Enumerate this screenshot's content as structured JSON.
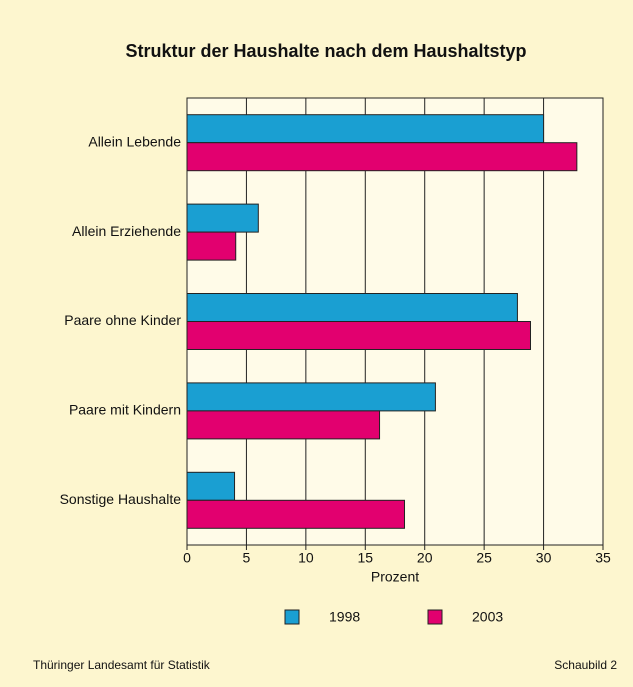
{
  "chart_data": {
    "type": "barh",
    "title": "Struktur der Haushalte nach dem Haushaltstyp",
    "categories": [
      "Allein Lebende",
      "Allein Erziehende",
      "Paare ohne Kinder",
      "Paare mit Kindern",
      "Sonstige Haushalte"
    ],
    "series": [
      {
        "name": "1998",
        "color": "#1a9fd2",
        "values": [
          30.0,
          6.0,
          27.8,
          20.9,
          4.0
        ]
      },
      {
        "name": "2003",
        "color": "#e2006f",
        "values": [
          32.8,
          4.1,
          28.9,
          16.2,
          18.3
        ]
      }
    ],
    "xlim": [
      0,
      35
    ],
    "xticks": [
      0,
      5,
      10,
      15,
      20,
      25,
      30,
      35
    ],
    "xlabel": "Prozent",
    "grid": true,
    "legend": "bottom",
    "source": "Thüringer Landesamt für Statistik",
    "figure_label": "Schaubild 2"
  }
}
